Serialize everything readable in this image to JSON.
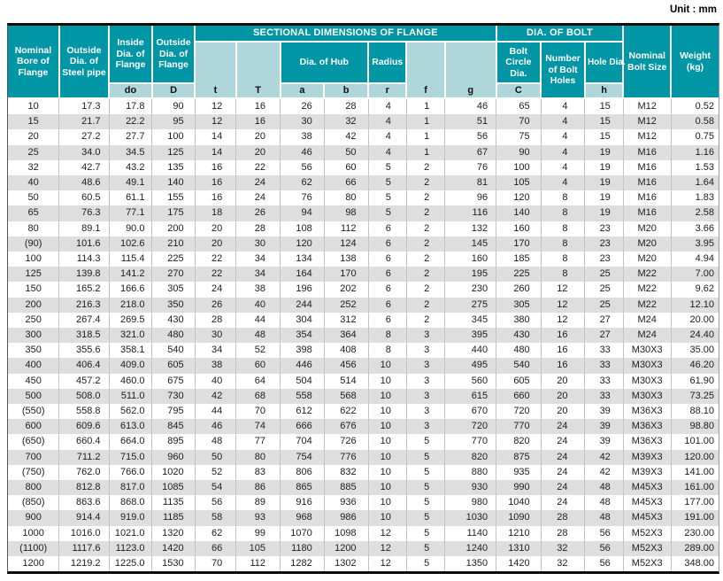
{
  "unit_label": "Unit : mm",
  "colors": {
    "header_teal": "#0096a5",
    "header_light_teal": "#afd6db",
    "row_stripe_gray": "#dedede",
    "border_black": "#0b0b0b"
  },
  "header": {
    "nominal_bore": "Nominal Bore of Flange",
    "outside_dia_pipe": "Outside Dia. of Steel pipe",
    "inside_dia_flange": "Inside Dia. of Flange",
    "outside_dia_flange": "Outside Dia. of Flange",
    "sectional_group": "SECTIONAL DIMENSIONS OF FLANGE",
    "dia_of_bolt_group": "DIA. OF BOLT",
    "dia_of_hub": "Dia. of Hub",
    "radius": "Radius",
    "bolt_circle_dia": "Bolt Circle Dia.",
    "number_of_bolt_holes": "Number of Bolt Holes",
    "hole_dia": "Hole Dia.",
    "nominal_bolt_size": "Nominal Bolt Size",
    "weight": "Weight (kg)",
    "letters": {
      "do": "do",
      "D": "D",
      "t": "t",
      "T": "T",
      "a": "a",
      "b": "b",
      "r": "r",
      "f": "f",
      "g": "g",
      "C": "C",
      "h": "h"
    }
  },
  "columns": [
    "Nominal Bore of Flange",
    "Outside Dia. of Steel pipe",
    "Inside Dia. of Flange (do)",
    "Outside Dia. of Flange (D)",
    "t",
    "T",
    "Dia. of Hub a",
    "Dia. of Hub b",
    "Radius r",
    "f",
    "g",
    "Bolt Circle Dia. C",
    "Number of Bolt Holes",
    "Hole Dia. h",
    "Nominal Bolt Size",
    "Weight (kg)"
  ],
  "rows": [
    [
      "10",
      "17.3",
      "17.8",
      "90",
      "12",
      "16",
      "26",
      "28",
      "4",
      "1",
      "46",
      "65",
      "4",
      "15",
      "M12",
      "0.52"
    ],
    [
      "15",
      "21.7",
      "22.2",
      "95",
      "12",
      "16",
      "30",
      "32",
      "4",
      "1",
      "51",
      "70",
      "4",
      "15",
      "M12",
      "0.58"
    ],
    [
      "20",
      "27.2",
      "27.7",
      "100",
      "14",
      "20",
      "38",
      "42",
      "4",
      "1",
      "56",
      "75",
      "4",
      "15",
      "M12",
      "0.75"
    ],
    [
      "25",
      "34.0",
      "34.5",
      "125",
      "14",
      "20",
      "46",
      "50",
      "4",
      "1",
      "67",
      "90",
      "4",
      "19",
      "M16",
      "1.16"
    ],
    [
      "32",
      "42.7",
      "43.2",
      "135",
      "16",
      "22",
      "56",
      "60",
      "5",
      "2",
      "76",
      "100",
      "4",
      "19",
      "M16",
      "1.53"
    ],
    [
      "40",
      "48.6",
      "49.1",
      "140",
      "16",
      "24",
      "62",
      "66",
      "5",
      "2",
      "81",
      "105",
      "4",
      "19",
      "M16",
      "1.64"
    ],
    [
      "50",
      "60.5",
      "61.1",
      "155",
      "16",
      "24",
      "76",
      "80",
      "5",
      "2",
      "96",
      "120",
      "8",
      "19",
      "M16",
      "1.83"
    ],
    [
      "65",
      "76.3",
      "77.1",
      "175",
      "18",
      "26",
      "94",
      "98",
      "5",
      "2",
      "116",
      "140",
      "8",
      "19",
      "M16",
      "2.58"
    ],
    [
      "80",
      "89.1",
      "90.0",
      "200",
      "20",
      "28",
      "108",
      "112",
      "6",
      "2",
      "132",
      "160",
      "8",
      "23",
      "M20",
      "3.66"
    ],
    [
      "(90)",
      "101.6",
      "102.6",
      "210",
      "20",
      "30",
      "120",
      "124",
      "6",
      "2",
      "145",
      "170",
      "8",
      "23",
      "M20",
      "3.95"
    ],
    [
      "100",
      "114.3",
      "115.4",
      "225",
      "22",
      "34",
      "134",
      "138",
      "6",
      "2",
      "160",
      "185",
      "8",
      "23",
      "M20",
      "4.94"
    ],
    [
      "125",
      "139.8",
      "141.2",
      "270",
      "22",
      "34",
      "164",
      "170",
      "6",
      "2",
      "195",
      "225",
      "8",
      "25",
      "M22",
      "7.00"
    ],
    [
      "150",
      "165.2",
      "166.6",
      "305",
      "24",
      "38",
      "196",
      "202",
      "6",
      "2",
      "230",
      "260",
      "12",
      "25",
      "M22",
      "9.62"
    ],
    [
      "200",
      "216.3",
      "218.0",
      "350",
      "26",
      "40",
      "244",
      "252",
      "6",
      "2",
      "275",
      "305",
      "12",
      "25",
      "M22",
      "12.10"
    ],
    [
      "250",
      "267.4",
      "269.5",
      "430",
      "28",
      "44",
      "304",
      "312",
      "6",
      "2",
      "345",
      "380",
      "12",
      "27",
      "M24",
      "20.00"
    ],
    [
      "300",
      "318.5",
      "321.0",
      "480",
      "30",
      "48",
      "354",
      "364",
      "8",
      "3",
      "395",
      "430",
      "16",
      "27",
      "M24",
      "24.40"
    ],
    [
      "350",
      "355.6",
      "358.1",
      "540",
      "34",
      "52",
      "398",
      "408",
      "8",
      "3",
      "440",
      "480",
      "16",
      "33",
      "M30X3",
      "35.00"
    ],
    [
      "400",
      "406.4",
      "409.0",
      "605",
      "38",
      "60",
      "446",
      "456",
      "10",
      "3",
      "495",
      "540",
      "16",
      "33",
      "M30X3",
      "46.20"
    ],
    [
      "450",
      "457.2",
      "460.0",
      "675",
      "40",
      "64",
      "504",
      "514",
      "10",
      "3",
      "560",
      "605",
      "20",
      "33",
      "M30X3",
      "61.90"
    ],
    [
      "500",
      "508.0",
      "511.0",
      "730",
      "42",
      "68",
      "558",
      "568",
      "10",
      "3",
      "615",
      "660",
      "20",
      "33",
      "M30X3",
      "73.25"
    ],
    [
      "(550)",
      "558.8",
      "562.0",
      "795",
      "44",
      "70",
      "612",
      "622",
      "10",
      "3",
      "670",
      "720",
      "20",
      "39",
      "M36X3",
      "88.10"
    ],
    [
      "600",
      "609.6",
      "613.0",
      "845",
      "46",
      "74",
      "666",
      "676",
      "10",
      "3",
      "720",
      "770",
      "24",
      "39",
      "M36X3",
      "98.80"
    ],
    [
      "(650)",
      "660.4",
      "664.0",
      "895",
      "48",
      "77",
      "704",
      "726",
      "10",
      "5",
      "770",
      "820",
      "24",
      "39",
      "M36X3",
      "101.00"
    ],
    [
      "700",
      "711.2",
      "715.0",
      "960",
      "50",
      "80",
      "754",
      "776",
      "10",
      "5",
      "820",
      "875",
      "24",
      "42",
      "M39X3",
      "120.00"
    ],
    [
      "(750)",
      "762.0",
      "766.0",
      "1020",
      "52",
      "83",
      "806",
      "832",
      "10",
      "5",
      "880",
      "935",
      "24",
      "42",
      "M39X3",
      "141.00"
    ],
    [
      "800",
      "812.8",
      "817.0",
      "1085",
      "54",
      "86",
      "865",
      "885",
      "10",
      "5",
      "930",
      "990",
      "24",
      "48",
      "M45X3",
      "161.00"
    ],
    [
      "(850)",
      "863.6",
      "868.0",
      "1135",
      "56",
      "89",
      "916",
      "936",
      "10",
      "5",
      "980",
      "1040",
      "24",
      "48",
      "M45X3",
      "177.00"
    ],
    [
      "900",
      "914.4",
      "919.0",
      "1185",
      "58",
      "93",
      "968",
      "986",
      "10",
      "5",
      "1030",
      "1090",
      "28",
      "48",
      "M45X3",
      "191.00"
    ],
    [
      "1000",
      "1016.0",
      "1021.0",
      "1320",
      "62",
      "99",
      "1070",
      "1098",
      "12",
      "5",
      "1140",
      "1210",
      "28",
      "56",
      "M52X3",
      "230.00"
    ],
    [
      "(1100)",
      "1117.6",
      "1123.0",
      "1420",
      "66",
      "105",
      "1180",
      "1200",
      "12",
      "5",
      "1240",
      "1310",
      "32",
      "56",
      "M52X3",
      "289.00"
    ],
    [
      "1200",
      "1219.2",
      "1225.0",
      "1530",
      "70",
      "112",
      "1282",
      "1302",
      "12",
      "5",
      "1350",
      "1420",
      "32",
      "56",
      "M52X3",
      "348.00"
    ]
  ]
}
